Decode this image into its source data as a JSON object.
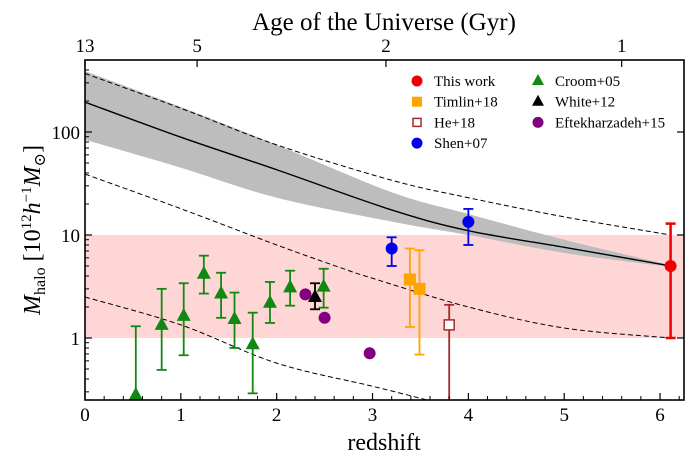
{
  "chart_data": {
    "type": "scatter",
    "xlabel": "redshift",
    "ylabel": {
      "main": "M",
      "sub": "halo",
      "bracket_open": " [10",
      "exp1": "12",
      "h": "h",
      "exp2": "−1",
      "msun": "M",
      "sun_sub": "⊙",
      "bracket_close": "]"
    },
    "top_axis_label": "Age of the Universe (Gyr)",
    "xlim": [
      0,
      6.25
    ],
    "ylim": [
      0.25,
      500
    ],
    "yscale": "log",
    "xticks": [
      "0",
      "1",
      "2",
      "3",
      "4",
      "5",
      "6"
    ],
    "yticks": [
      "1",
      "10",
      "100"
    ],
    "top_ticks": [
      {
        "label": "13",
        "z": 0
      },
      {
        "label": "5",
        "z": 1.17
      },
      {
        "label": "2",
        "z": 3.14
      },
      {
        "label": "1",
        "z": 5.6
      }
    ],
    "shaded_range": {
      "ymin": 1,
      "ymax": 10,
      "color": "#ffd6d6"
    },
    "model_band": {
      "color": "#bdbdbd",
      "z": [
        0,
        1,
        2,
        3.2,
        4,
        5,
        6.11
      ],
      "upper": [
        390,
        175,
        75,
        26,
        16,
        9,
        5.1
      ],
      "lower": [
        84,
        45,
        23,
        13.5,
        10,
        6.7,
        4.9
      ],
      "median": [
        195,
        89,
        43,
        17.5,
        11,
        7.6,
        5.0
      ]
    },
    "dashed_curves": [
      {
        "z": [
          0,
          1,
          2,
          3.2,
          4,
          5,
          6.11
        ],
        "y": [
          370,
          170,
          75,
          34,
          23,
          15,
          10
        ]
      },
      {
        "z": [
          0,
          1,
          2,
          2.67,
          3,
          4,
          5,
          6.11
        ],
        "y": [
          39,
          18,
          8,
          4.8,
          3.8,
          2.0,
          1.25,
          1.0
        ]
      },
      {
        "z": [
          0,
          1,
          2,
          3,
          3.57
        ],
        "y": [
          2.5,
          1.34,
          0.57,
          0.34,
          0.25
        ]
      }
    ],
    "series": [
      {
        "name": "This work",
        "marker": "circle",
        "color": "#ee0000",
        "points": [
          {
            "z": 6.11,
            "y": 5.0,
            "hi": 12.9,
            "lo": 1.0
          }
        ]
      },
      {
        "name": "Timlin+18",
        "marker": "square",
        "color": "#ffa500",
        "points": [
          {
            "z": 3.39,
            "y": 3.7,
            "hi": 7.4,
            "lo": 1.28
          },
          {
            "z": 3.49,
            "y": 3.0,
            "hi": 7.1,
            "lo": 0.69
          }
        ]
      },
      {
        "name": "He+18",
        "marker": "open-square",
        "color": "#a52a2a",
        "points": [
          {
            "z": 3.8,
            "y": 1.34,
            "hi": 2.1,
            "lo": 0.25
          }
        ]
      },
      {
        "name": "Shen+07",
        "marker": "circle",
        "color": "#0000ee",
        "points": [
          {
            "z": 3.2,
            "y": 7.4,
            "hi": 9.5,
            "lo": 5.0
          },
          {
            "z": 4.0,
            "y": 13.4,
            "hi": 17.9,
            "lo": 8.0
          }
        ]
      },
      {
        "name": "Croom+05",
        "marker": "triangle",
        "color": "#118811",
        "points": [
          {
            "z": 0.53,
            "y": 0.28,
            "hi": 1.3,
            "lo": 0.25
          },
          {
            "z": 0.8,
            "y": 1.34,
            "hi": 3.0,
            "lo": 0.49
          },
          {
            "z": 1.03,
            "y": 1.64,
            "hi": 3.4,
            "lo": 0.68
          },
          {
            "z": 1.24,
            "y": 4.2,
            "hi": 6.3,
            "lo": 2.7
          },
          {
            "z": 1.42,
            "y": 2.7,
            "hi": 4.3,
            "lo": 1.57
          },
          {
            "z": 1.56,
            "y": 1.53,
            "hi": 2.76,
            "lo": 0.8
          },
          {
            "z": 1.75,
            "y": 0.87,
            "hi": 1.76,
            "lo": 0.29
          },
          {
            "z": 1.93,
            "y": 2.2,
            "hi": 3.5,
            "lo": 1.4
          },
          {
            "z": 2.14,
            "y": 3.1,
            "hi": 4.5,
            "lo": 2.06
          },
          {
            "z": 2.49,
            "y": 3.15,
            "hi": 4.7,
            "lo": 1.97
          }
        ]
      },
      {
        "name": "White+12",
        "marker": "triangle",
        "color": "#000000",
        "points": [
          {
            "z": 2.4,
            "y": 2.5,
            "hi": 3.4,
            "lo": 1.9
          }
        ]
      },
      {
        "name": "Eftekharzadeh+15",
        "marker": "circle",
        "color": "#800080",
        "points": [
          {
            "z": 2.3,
            "y": 2.65
          },
          {
            "z": 2.5,
            "y": 1.57
          },
          {
            "z": 2.97,
            "y": 0.71
          }
        ]
      }
    ],
    "legend": {
      "placement": "top-right",
      "columns": [
        [
          "This work",
          "Timlin+18",
          "He+18",
          "Shen+07"
        ],
        [
          "Croom+05",
          "White+12",
          "Eftekharzadeh+15"
        ]
      ]
    }
  }
}
